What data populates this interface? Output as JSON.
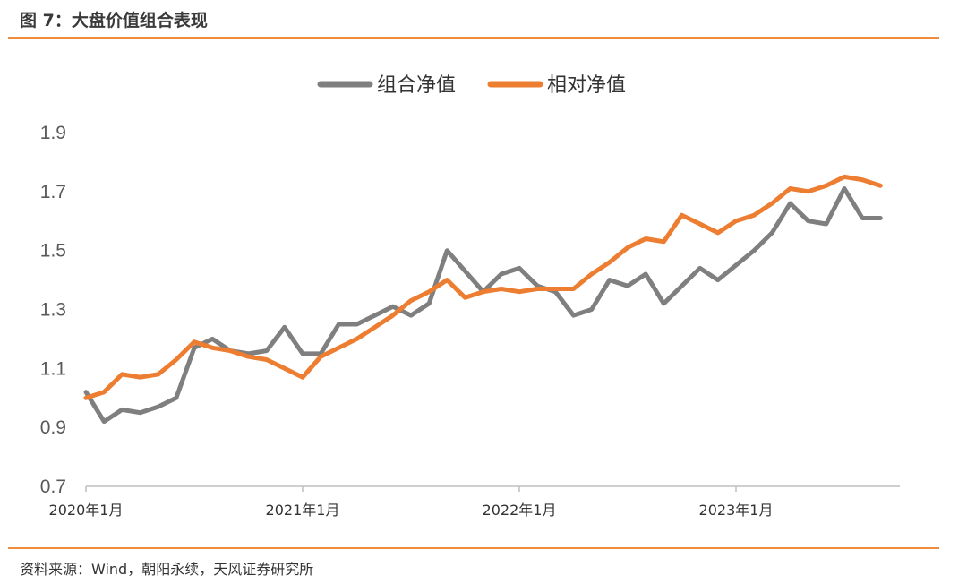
{
  "figure": {
    "title": "图 7：大盘价值组合表现",
    "source": "资料来源：Wind，朝阳永续，天风证券研究所"
  },
  "colors": {
    "rule": "#f08a3c",
    "gray_series": "#7f7f7f",
    "orange_series": "#ed7d31"
  },
  "chart_data": {
    "type": "line",
    "title": "",
    "xlabel": "",
    "ylabel": "",
    "ylim": [
      0.7,
      1.9
    ],
    "yticks": [
      "0.7",
      "0.9",
      "1.1",
      "1.3",
      "1.5",
      "1.7",
      "1.9"
    ],
    "xticks": [
      "2020年1月",
      "2021年1月",
      "2022年1月",
      "2023年1月"
    ],
    "grid": false,
    "legend": "top-center",
    "x": [
      "2020-01",
      "2020-02",
      "2020-03",
      "2020-04",
      "2020-05",
      "2020-06",
      "2020-07",
      "2020-08",
      "2020-09",
      "2020-10",
      "2020-11",
      "2020-12",
      "2021-01",
      "2021-02",
      "2021-03",
      "2021-04",
      "2021-05",
      "2021-06",
      "2021-07",
      "2021-08",
      "2021-09",
      "2021-10",
      "2021-11",
      "2021-12",
      "2022-01",
      "2022-02",
      "2022-03",
      "2022-04",
      "2022-05",
      "2022-06",
      "2022-07",
      "2022-08",
      "2022-09",
      "2022-10",
      "2022-11",
      "2022-12",
      "2023-01",
      "2023-02",
      "2023-03",
      "2023-04",
      "2023-05",
      "2023-06",
      "2023-07",
      "2023-08",
      "2023-09"
    ],
    "series": [
      {
        "name": "组合净值",
        "color": "#7f7f7f",
        "values": [
          1.02,
          0.92,
          0.96,
          0.95,
          0.97,
          1.0,
          1.17,
          1.2,
          1.16,
          1.15,
          1.16,
          1.24,
          1.15,
          1.15,
          1.25,
          1.25,
          1.28,
          1.31,
          1.28,
          1.32,
          1.5,
          1.43,
          1.36,
          1.42,
          1.44,
          1.38,
          1.36,
          1.28,
          1.3,
          1.4,
          1.38,
          1.42,
          1.32,
          1.38,
          1.44,
          1.4,
          1.45,
          1.5,
          1.56,
          1.66,
          1.6,
          1.59,
          1.71,
          1.61,
          1.61
        ]
      },
      {
        "name": "相对净值",
        "color": "#ed7d31",
        "values": [
          1.0,
          1.02,
          1.08,
          1.07,
          1.08,
          1.13,
          1.19,
          1.17,
          1.16,
          1.14,
          1.13,
          1.1,
          1.07,
          1.14,
          1.17,
          1.2,
          1.24,
          1.28,
          1.33,
          1.36,
          1.4,
          1.34,
          1.36,
          1.37,
          1.36,
          1.37,
          1.37,
          1.37,
          1.42,
          1.46,
          1.51,
          1.54,
          1.53,
          1.62,
          1.59,
          1.56,
          1.6,
          1.62,
          1.66,
          1.71,
          1.7,
          1.72,
          1.75,
          1.74,
          1.72
        ]
      }
    ]
  }
}
